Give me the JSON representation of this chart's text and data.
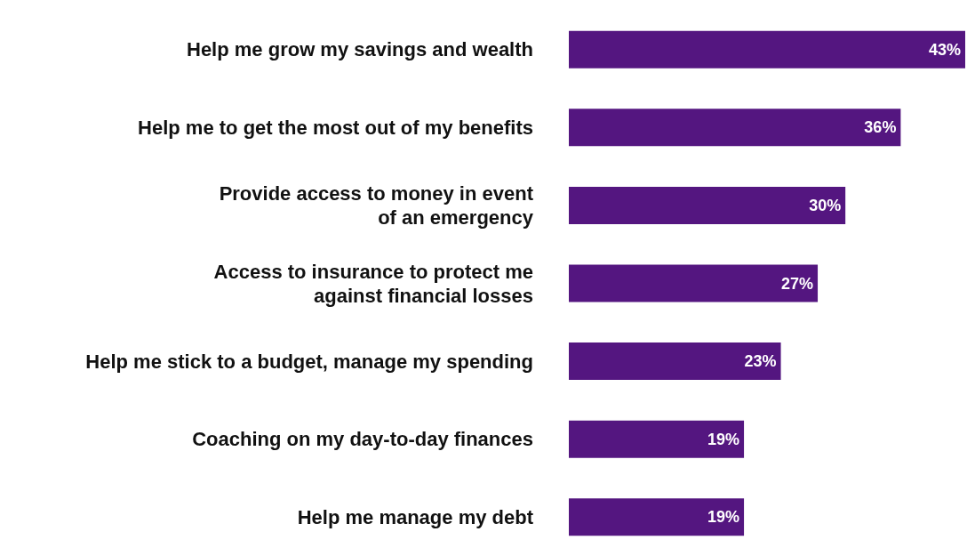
{
  "chart_data": {
    "type": "bar",
    "orientation": "horizontal",
    "categories": [
      "Help me grow my savings and wealth",
      "Help me to get the most out of my benefits",
      "Provide access to money in event\nof an emergency",
      "Access to insurance to protect me\nagainst financial losses",
      "Help me stick to a budget, manage my spending",
      "Coaching on my day-to-day finances",
      "Help me manage my debt"
    ],
    "values": [
      43,
      36,
      30,
      27,
      23,
      19,
      19
    ],
    "value_labels": [
      "43%",
      "36%",
      "30%",
      "27%",
      "23%",
      "19%",
      "19%"
    ],
    "color": "#541680"
  }
}
